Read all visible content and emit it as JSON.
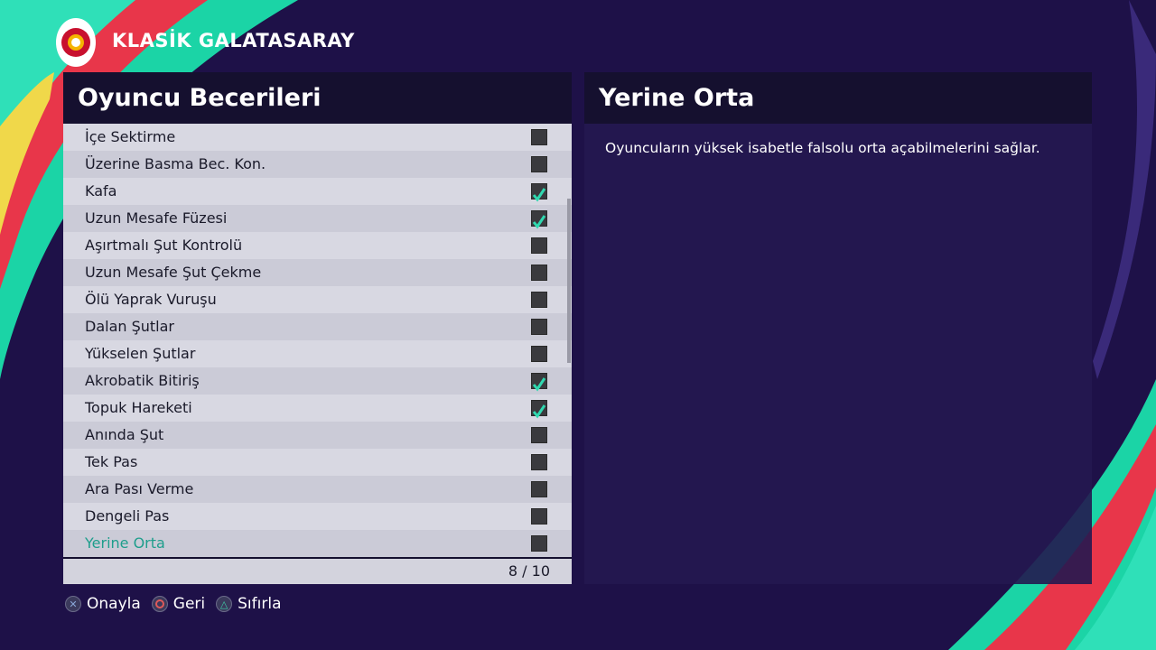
{
  "header": {
    "title": "KLASİK GALATASARAY"
  },
  "skills_panel": {
    "title": "Oyuncu Becerileri",
    "selected": 15,
    "items": [
      {
        "label": "İçe Sektirme",
        "checked": false
      },
      {
        "label": "Üzerine Basma Bec. Kon.",
        "checked": false
      },
      {
        "label": "Kafa",
        "checked": true
      },
      {
        "label": "Uzun Mesafe Füzesi",
        "checked": true
      },
      {
        "label": "Aşırtmalı Şut Kontrolü",
        "checked": false
      },
      {
        "label": "Uzun Mesafe Şut Çekme",
        "checked": false
      },
      {
        "label": "Ölü Yaprak Vuruşu",
        "checked": false
      },
      {
        "label": "Dalan Şutlar",
        "checked": false
      },
      {
        "label": "Yükselen Şutlar",
        "checked": false
      },
      {
        "label": "Akrobatik Bitiriş",
        "checked": true
      },
      {
        "label": "Topuk Hareketi",
        "checked": true
      },
      {
        "label": "Anında Şut",
        "checked": false
      },
      {
        "label": "Tek Pas",
        "checked": false
      },
      {
        "label": "Ara Pası Verme",
        "checked": false
      },
      {
        "label": "Dengeli Pas",
        "checked": false
      },
      {
        "label": "Yerine Orta",
        "checked": false
      }
    ],
    "count": "8 / 10"
  },
  "detail_panel": {
    "title": "Yerine Orta",
    "description": "Oyuncuların yüksek isabetle falsolu orta açabilmelerini sağlar."
  },
  "footer": {
    "buttons": [
      {
        "label": "Onayla"
      },
      {
        "label": "Geri"
      },
      {
        "label": "Sıfırla"
      }
    ]
  }
}
